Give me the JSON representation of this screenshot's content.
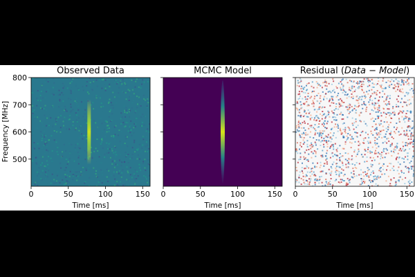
{
  "chart_data": [
    {
      "type": "heatmap",
      "title": "Observed Data",
      "xlabel": "Time [ms]",
      "ylabel": "Frequency [MHz]",
      "xlim": [
        0,
        160
      ],
      "ylim": [
        400,
        800
      ],
      "xticks": [
        0,
        50,
        100,
        150
      ],
      "yticks": [
        500,
        600,
        700,
        800
      ],
      "colormap": "viridis",
      "burst": {
        "time": 78,
        "freq_center": 600,
        "freq_range": [
          480,
          720
        ]
      }
    },
    {
      "type": "heatmap",
      "title": "MCMC Model",
      "xlabel": "Time [ms]",
      "xlim": [
        0,
        160
      ],
      "ylim": [
        400,
        800
      ],
      "xticks": [
        0,
        50,
        100,
        150
      ],
      "colormap": "viridis",
      "burst": {
        "time": 80,
        "freq_center": 600,
        "freq_range": [
          420,
          800
        ]
      }
    },
    {
      "type": "heatmap",
      "title_prefix": "Residual (",
      "title_math": "Data − Model",
      "title_suffix": ")",
      "xlabel": "Time [ms]",
      "xlim": [
        0,
        160
      ],
      "ylim": [
        400,
        800
      ],
      "xticks": [
        0,
        50,
        100,
        150
      ],
      "colormap": "RdBu"
    }
  ]
}
